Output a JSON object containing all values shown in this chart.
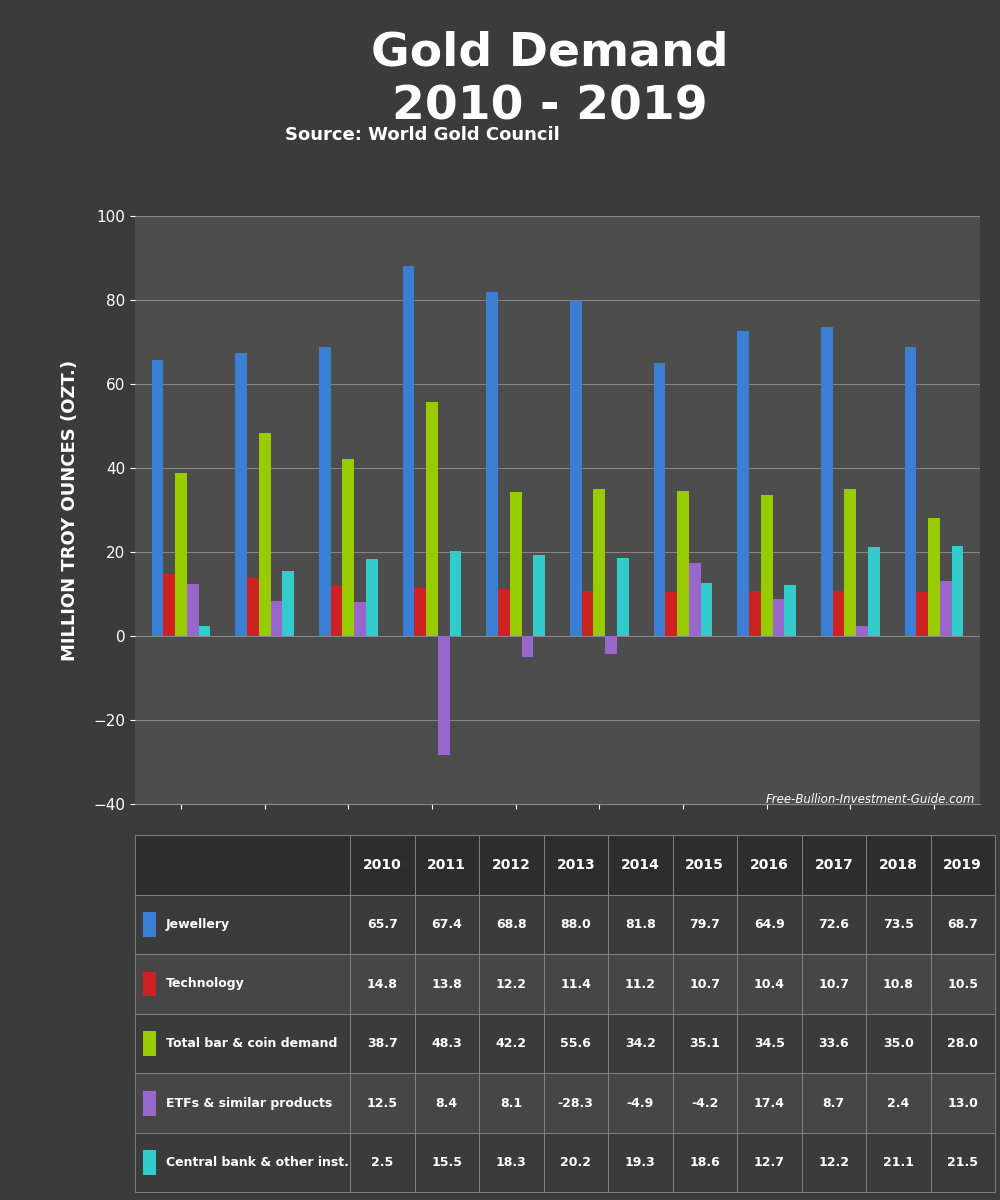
{
  "title_line1": "Gold Demand",
  "title_line2": "2010 - 2019",
  "subtitle": "Source: World Gold Council",
  "watermark": "Free-Bullion-Investment-Guide.com",
  "ylabel": "MILLION TROY OUNCES (OZT.)",
  "background_color": "#3b3b3b",
  "plot_bg_color": "#4d4d4d",
  "years": [
    2010,
    2011,
    2012,
    2013,
    2014,
    2015,
    2016,
    2017,
    2018,
    2019
  ],
  "series": {
    "Jewellery": [
      65.7,
      67.4,
      68.8,
      88.0,
      81.8,
      79.7,
      64.9,
      72.6,
      73.5,
      68.7
    ],
    "Technology": [
      14.8,
      13.8,
      12.2,
      11.4,
      11.2,
      10.7,
      10.4,
      10.7,
      10.8,
      10.5
    ],
    "Total bar & coin demand": [
      38.7,
      48.3,
      42.2,
      55.6,
      34.2,
      35.1,
      34.5,
      33.6,
      35.0,
      28.0
    ],
    "ETFs & similar products": [
      12.5,
      8.4,
      8.1,
      -28.3,
      -4.9,
      -4.2,
      17.4,
      8.7,
      2.4,
      13.0
    ],
    "Central bank & other inst.": [
      2.5,
      15.5,
      18.3,
      20.2,
      19.3,
      18.6,
      12.7,
      12.2,
      21.1,
      21.5
    ]
  },
  "colors": {
    "Jewellery": "#3a7fd4",
    "Technology": "#cc2222",
    "Total bar & coin demand": "#99cc00",
    "ETFs & similar products": "#9966cc",
    "Central bank & other inst.": "#33cccc"
  },
  "ylim": [
    -40.0,
    100.0
  ],
  "yticks": [
    -40.0,
    -20.0,
    0.0,
    20.0,
    40.0,
    60.0,
    80.0,
    100.0
  ],
  "title_fontsize": 34,
  "subtitle_fontsize": 13,
  "ylabel_fontsize": 13,
  "tick_fontsize": 11,
  "table_header_bg": "#2d2d2d",
  "table_row_bg1": "#3b3b3b",
  "table_row_bg2": "#464646",
  "table_border": "#888888"
}
